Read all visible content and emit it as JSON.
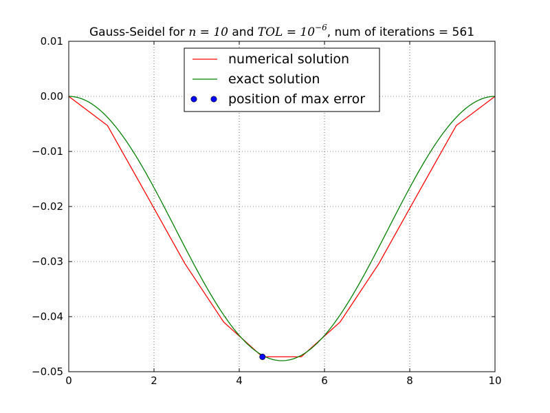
{
  "chart_data": {
    "type": "line",
    "title": {
      "prefix": "Gauss-Seidel for ",
      "n_expr": "n = 10",
      "middle": " and ",
      "tol_base": "TOL = 10",
      "tol_exp": "−6",
      "suffix": ", num of iterations = 561"
    },
    "xlim": [
      0,
      10
    ],
    "ylim": [
      -0.05,
      0.01
    ],
    "xticks": [
      {
        "value": 0,
        "label": "0"
      },
      {
        "value": 2,
        "label": "2"
      },
      {
        "value": 4,
        "label": "4"
      },
      {
        "value": 6,
        "label": "6"
      },
      {
        "value": 8,
        "label": "8"
      },
      {
        "value": 10,
        "label": "10"
      }
    ],
    "yticks": [
      {
        "value": 0.01,
        "label": "0.01"
      },
      {
        "value": 0.0,
        "label": "0.00"
      },
      {
        "value": -0.01,
        "label": "−0.01"
      },
      {
        "value": -0.02,
        "label": "−0.02"
      },
      {
        "value": -0.03,
        "label": "−0.03"
      },
      {
        "value": -0.04,
        "label": "−0.04"
      },
      {
        "value": -0.05,
        "label": "−0.05"
      }
    ],
    "grid": true,
    "legend_position": "upper-center",
    "series": [
      {
        "name": "numerical solution",
        "color": "#ff0000",
        "style": "line",
        "x": [
          0,
          0.909,
          1.818,
          2.727,
          3.636,
          4.545,
          5.455,
          6.364,
          7.273,
          8.182,
          9.091,
          10
        ],
        "y": [
          0,
          -0.0053,
          -0.0178,
          -0.0304,
          -0.041,
          -0.0473,
          -0.0473,
          -0.041,
          -0.0304,
          -0.0178,
          -0.0053,
          0
        ]
      },
      {
        "name": "exact solution",
        "color": "#008000",
        "style": "curve",
        "amplitude": -0.048,
        "period": 10
      },
      {
        "name": "position of max error",
        "color": "#0000ff",
        "style": "marker",
        "x": [
          4.545
        ],
        "y": [
          -0.0473
        ]
      }
    ]
  }
}
